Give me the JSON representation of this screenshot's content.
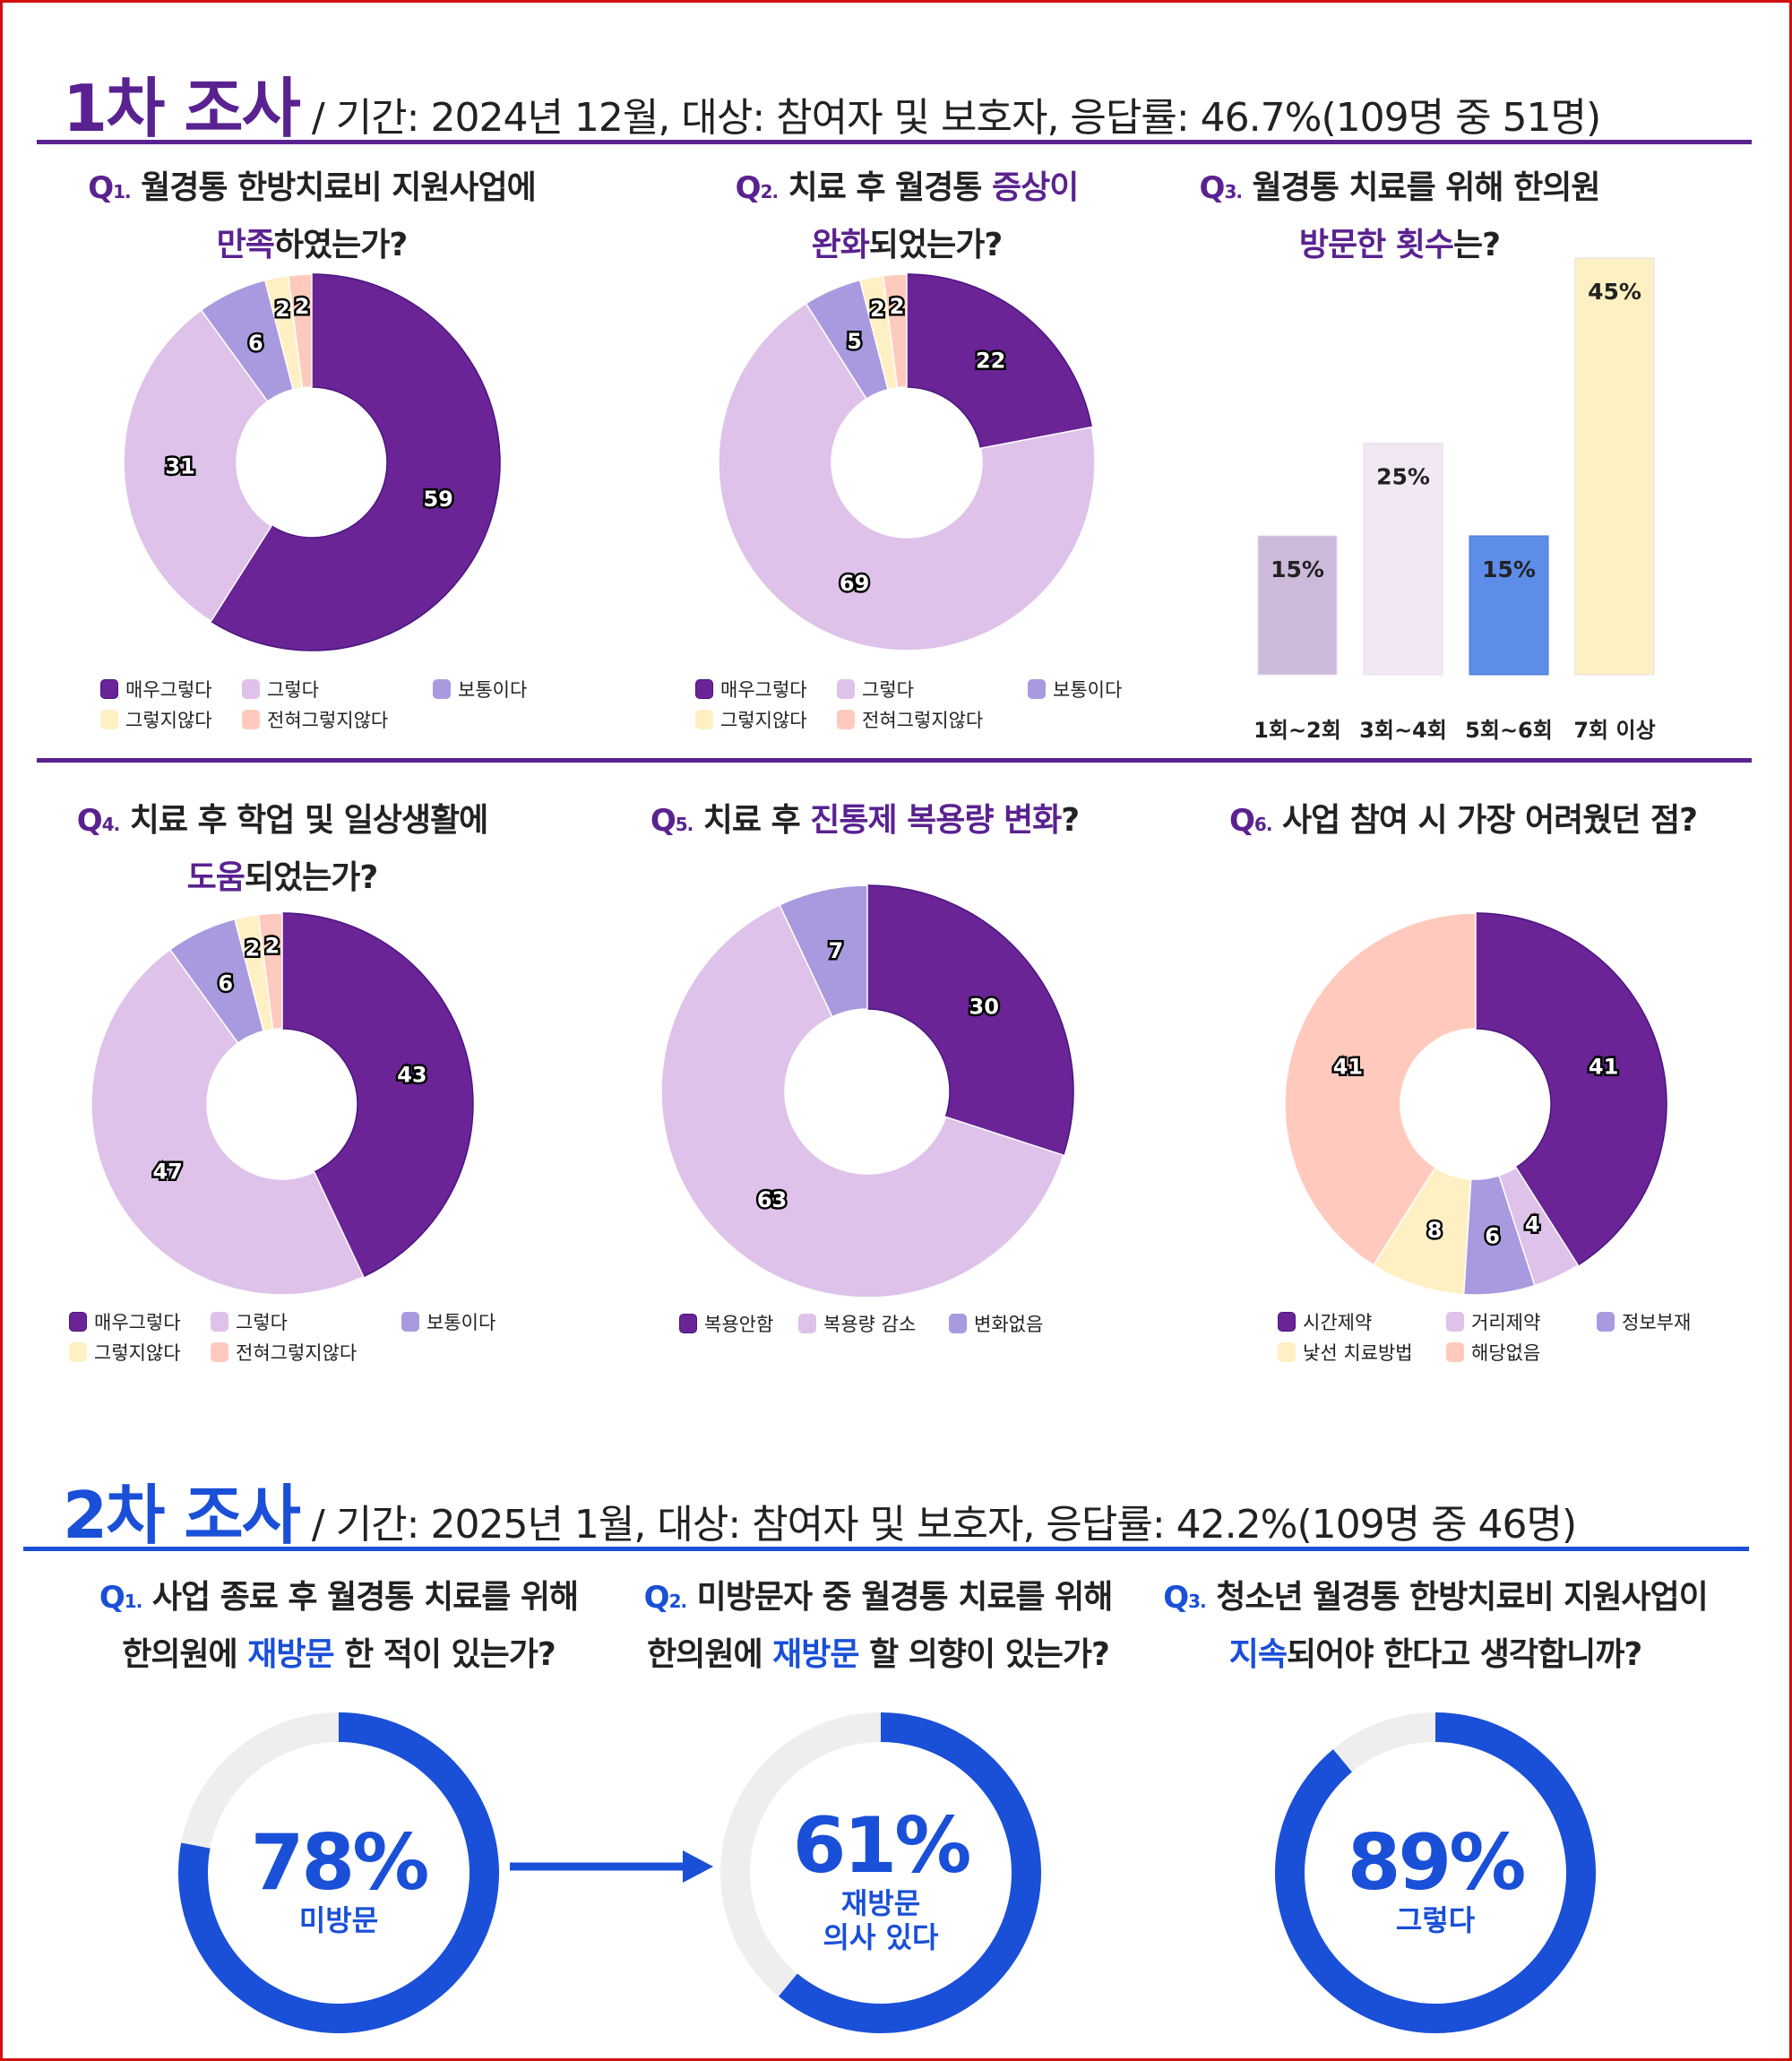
{
  "colors": {
    "dark_purple": "#6a2496",
    "light_purple": "#dec2e9",
    "medium_purple": "#a99adf",
    "yellow": "#fff0c4",
    "peach": "#ffcabd",
    "section1": "#5a2290",
    "section2": "#1a4fd8",
    "ring_bg": "#eeeeee"
  },
  "survey1": {
    "title": "1차 조사",
    "subtitle": "/ 기간: 2024년 12월, 대상: 참여자 및 보호자, 응답률: 46.7%(109명 중 51명)"
  },
  "survey2": {
    "title": "2차 조사",
    "subtitle": "/ 기간: 2025년 1월, 대상: 참여자 및 보호자, 응답률: 42.2%(109명 중 46명)"
  },
  "questions1": [
    {
      "num": "Q",
      "sub": "1.",
      "lines": [
        [
          {
            "t": "월경통 한방치료비 지원사업에"
          }
        ],
        [
          {
            "t": "만족",
            "hl": true
          },
          {
            "t": "하였는가?"
          }
        ]
      ]
    },
    {
      "num": "Q",
      "sub": "2.",
      "lines": [
        [
          {
            "t": "치료 후 월경통 "
          },
          {
            "t": "증상이",
            "hl": true
          }
        ],
        [
          {
            "t": "완화",
            "hl": true
          },
          {
            "t": "되었는가?"
          }
        ]
      ]
    },
    {
      "num": "Q",
      "sub": "3.",
      "lines": [
        [
          {
            "t": "월경통 치료를 위해 한의원"
          }
        ],
        [
          {
            "t": "방문한 횟수",
            "hl": true
          },
          {
            "t": "는?"
          }
        ]
      ]
    },
    {
      "num": "Q",
      "sub": "4.",
      "lines": [
        [
          {
            "t": "치료 후 학업 및 일상생활에"
          }
        ],
        [
          {
            "t": "도움",
            "hl": true
          },
          {
            "t": "되었는가?"
          }
        ]
      ]
    },
    {
      "num": "Q",
      "sub": "5.",
      "lines": [
        [
          {
            "t": "치료 후 "
          },
          {
            "t": "진통제 복용량 변화",
            "hl": true
          },
          {
            "t": "?"
          }
        ]
      ]
    },
    {
      "num": "Q",
      "sub": "6.",
      "lines": [
        [
          {
            "t": "사업 참여 시 가장 어려웠던 점?"
          }
        ]
      ]
    }
  ],
  "questions2": [
    {
      "num": "Q",
      "sub": "1.",
      "lines": [
        [
          {
            "t": "사업 종료 후 월경통 치료를 위해"
          }
        ],
        [
          {
            "t": "한의원에 "
          },
          {
            "t": "재방문",
            "hl": true
          },
          {
            "t": " 한 적이 있는가?"
          }
        ]
      ]
    },
    {
      "num": "Q",
      "sub": "2.",
      "lines": [
        [
          {
            "t": "미방문자 중 월경통 치료를 위해"
          }
        ],
        [
          {
            "t": "한의원에 "
          },
          {
            "t": "재방문",
            "hl": true
          },
          {
            "t": " 할 의향이 있는가?"
          }
        ]
      ]
    },
    {
      "num": "Q",
      "sub": "3.",
      "lines": [
        [
          {
            "t": "청소년 월경통 한방치료비 지원사업이"
          }
        ],
        [
          {
            "t": "지속",
            "hl": true
          },
          {
            "t": "되어야 한다고 생각합니까?"
          }
        ]
      ]
    }
  ],
  "chart_data": [
    {
      "id": "q1",
      "type": "pie",
      "donut": true,
      "categories": [
        "매우그렇다",
        "그렇다",
        "보통이다",
        "그렇지않다",
        "전혀그렇지않다"
      ],
      "values": [
        59,
        31,
        6,
        2,
        2
      ],
      "colors": [
        "#6a2496",
        "#dec2e9",
        "#a99adf",
        "#fff0c4",
        "#ffcabd"
      ]
    },
    {
      "id": "q2",
      "type": "pie",
      "donut": true,
      "categories": [
        "매우그렇다",
        "그렇다",
        "보통이다",
        "그렇지않다",
        "전혀그렇지않다"
      ],
      "values": [
        22,
        69,
        5,
        2,
        2
      ],
      "colors": [
        "#6a2496",
        "#dec2e9",
        "#a99adf",
        "#fff0c4",
        "#ffcabd"
      ]
    },
    {
      "id": "q3",
      "type": "bar",
      "categories": [
        "1회~2회",
        "3회~4회",
        "5회~6회",
        "7회 이상"
      ],
      "values": [
        15,
        25,
        15,
        45
      ],
      "labels": [
        "15%",
        "25%",
        "15%",
        "45%"
      ],
      "colors": [
        "#cdb9da",
        "#f2e8f4",
        "#5d8ce9",
        "#fdf0c2"
      ],
      "ylim": [
        0,
        45
      ]
    },
    {
      "id": "q4",
      "type": "pie",
      "donut": true,
      "categories": [
        "매우그렇다",
        "그렇다",
        "보통이다",
        "그렇지않다",
        "전혀그렇지않다"
      ],
      "values": [
        43,
        47,
        6,
        2,
        2
      ],
      "colors": [
        "#6a2496",
        "#dec2e9",
        "#a99adf",
        "#fff0c4",
        "#ffcabd"
      ]
    },
    {
      "id": "q5",
      "type": "pie",
      "donut": true,
      "categories": [
        "복용안함",
        "복용량 감소",
        "변화없음"
      ],
      "values": [
        30,
        63,
        7
      ],
      "colors": [
        "#6a2496",
        "#dec2e9",
        "#a99adf"
      ]
    },
    {
      "id": "q6",
      "type": "pie",
      "donut": true,
      "categories": [
        "시간제약",
        "거리제약",
        "정보부재",
        "낯선 치료방법",
        "해당없음"
      ],
      "values": [
        41,
        4,
        6,
        8,
        41
      ],
      "colors": [
        "#6a2496",
        "#dec2e9",
        "#a99adf",
        "#fff0c4",
        "#ffcabd"
      ]
    },
    {
      "id": "s2q1",
      "type": "pie",
      "donut": true,
      "values": [
        78
      ],
      "percent_label": "78%",
      "label": [
        "미방문"
      ]
    },
    {
      "id": "s2q2",
      "type": "pie",
      "donut": true,
      "values": [
        61
      ],
      "percent_label": "61%",
      "label": [
        "재방문",
        "의사 있다"
      ]
    },
    {
      "id": "s2q3",
      "type": "pie",
      "donut": true,
      "values": [
        89
      ],
      "percent_label": "89%",
      "label": [
        "그렇다"
      ]
    }
  ]
}
